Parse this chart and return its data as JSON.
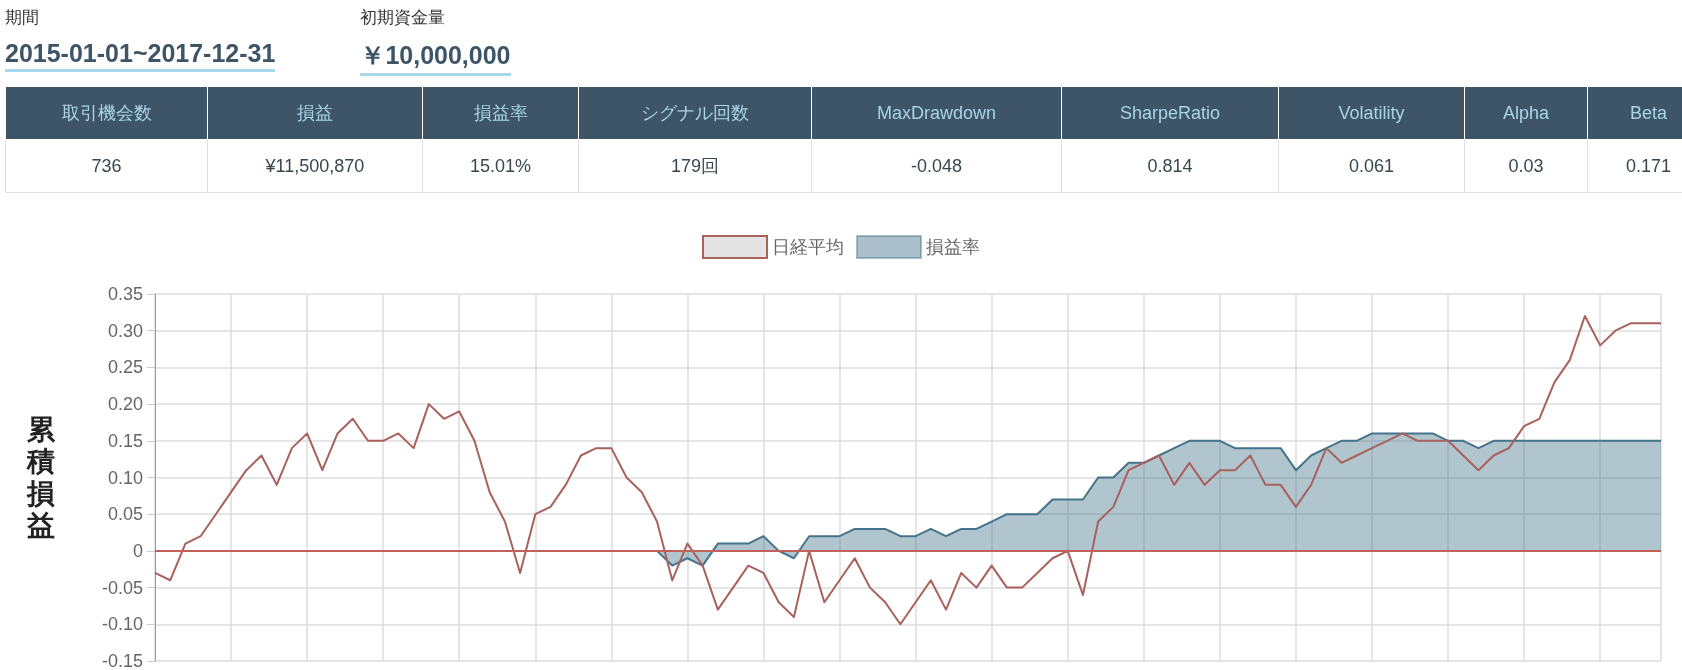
{
  "chart_data": [
    {
      "type": "other",
      "annotations": [
        "期間",
        "2015-01-01~2017-12-31",
        "初期資金量",
        "￥10,000,000",
        "736",
        "¥11,500,870",
        "15.01%",
        "179回",
        "-0.048",
        "0.814",
        "0.061",
        "0.03",
        "0.171"
      ],
      "categories": [
        "取引機会数",
        "損益",
        "損益率",
        "シグナル回数",
        "MaxDrawdown",
        "SharpeRatio",
        "Volatility",
        "Alpha",
        "Beta"
      ]
    },
    {
      "type": "line",
      "ylabel": "累積損益",
      "legend": "top",
      "grid": true,
      "marker": "none",
      "tick_labels": "y",
      "categories": [
        null,
        null,
        null,
        null,
        null,
        null,
        null,
        null,
        null,
        null,
        null,
        null,
        null,
        null,
        null,
        null,
        null,
        null,
        null,
        null,
        null,
        null,
        null,
        null,
        null,
        null,
        null,
        null,
        null,
        null,
        null,
        null,
        null,
        null,
        null,
        null,
        null,
        null,
        null,
        null,
        null,
        null,
        null,
        null,
        null,
        null,
        null,
        null,
        null,
        null,
        null,
        null,
        null,
        null,
        null,
        null,
        null,
        null,
        null,
        null,
        null,
        null,
        null,
        null,
        null,
        null,
        null,
        null,
        null,
        null,
        null,
        null,
        null,
        null,
        null,
        null,
        null,
        null,
        null,
        null,
        null,
        null,
        null,
        null,
        null,
        null,
        null,
        null,
        null,
        null,
        null,
        null,
        null,
        null,
        null,
        null,
        null,
        null,
        null,
        null
      ],
      "ylim": [
        -0.15,
        0.35
      ],
      "yticks": [
        {
          "value": -0.15,
          "label": "-0.15"
        },
        {
          "value": -0.1,
          "label": "-0.10"
        },
        {
          "value": -0.05,
          "label": "-0.05"
        },
        0,
        {
          "value": 0.05,
          "label": "0.05"
        },
        {
          "value": 0.1,
          "label": "0.10"
        },
        {
          "value": 0.15,
          "label": "0.15"
        },
        {
          "value": 0.2,
          "label": "0.20"
        },
        {
          "value": 0.25,
          "label": "0.25"
        },
        {
          "value": 0.3,
          "label": "0.30"
        },
        {
          "value": 0.35,
          "label": "0.35"
        }
      ],
      "ref_lines": [
        {
          "axis": "y",
          "value": 0,
          "color": "#c0615c"
        }
      ],
      "series": [
        {
          "name": "日経平均",
          "type": "line",
          "color": "#a8615c",
          "values": [
            -0.03,
            -0.04,
            0.01,
            0.02,
            0.05,
            0.08,
            0.11,
            0.13,
            0.09,
            0.14,
            0.16,
            0.11,
            0.16,
            0.18,
            0.15,
            0.15,
            0.16,
            0.14,
            0.2,
            0.18,
            0.19,
            0.15,
            0.08,
            0.04,
            -0.03,
            0.05,
            0.06,
            0.09,
            0.13,
            0.14,
            0.14,
            0.1,
            0.08,
            0.04,
            -0.04,
            0.01,
            -0.02,
            -0.08,
            -0.05,
            -0.02,
            -0.03,
            -0.07,
            -0.09,
            0.0,
            -0.07,
            -0.04,
            -0.01,
            -0.05,
            -0.07,
            -0.1,
            -0.07,
            -0.04,
            -0.08,
            -0.03,
            -0.05,
            -0.02,
            -0.05,
            -0.05,
            -0.03,
            -0.01,
            0.0,
            -0.06,
            0.04,
            0.06,
            0.11,
            0.12,
            0.13,
            0.09,
            0.12,
            0.09,
            0.11,
            0.11,
            0.13,
            0.09,
            0.09,
            0.06,
            0.09,
            0.14,
            0.12,
            0.13,
            0.14,
            0.15,
            0.16,
            0.15,
            0.15,
            0.15,
            0.13,
            0.11,
            0.13,
            0.14,
            0.17,
            0.18,
            0.23,
            0.26,
            0.32,
            0.28,
            0.3,
            0.31,
            0.31,
            0.31
          ]
        },
        {
          "name": "損益率",
          "type": "area",
          "color": "#45748a",
          "values": [
            0,
            0,
            0,
            0,
            0,
            0,
            0,
            0,
            0,
            0,
            0,
            0,
            0,
            0,
            0,
            0,
            0,
            0,
            0,
            0,
            0,
            0,
            0,
            0,
            0,
            0,
            0,
            0,
            0,
            0,
            0,
            0,
            0,
            0,
            -0.02,
            -0.01,
            -0.02,
            0.01,
            0.01,
            0.01,
            0.02,
            0.0,
            -0.01,
            0.02,
            0.02,
            0.02,
            0.03,
            0.03,
            0.03,
            0.02,
            0.02,
            0.03,
            0.02,
            0.03,
            0.03,
            0.04,
            0.05,
            0.05,
            0.05,
            0.07,
            0.07,
            0.07,
            0.1,
            0.1,
            0.12,
            0.12,
            0.13,
            0.14,
            0.15,
            0.15,
            0.15,
            0.14,
            0.14,
            0.14,
            0.14,
            0.11,
            0.13,
            0.14,
            0.15,
            0.15,
            0.16,
            0.16,
            0.16,
            0.16,
            0.16,
            0.15,
            0.15,
            0.14,
            0.15,
            0.15,
            0.15,
            0.15,
            0.15,
            0.15,
            0.15,
            0.15,
            0.15,
            0.15,
            0.15,
            0.15
          ]
        }
      ]
    }
  ]
}
